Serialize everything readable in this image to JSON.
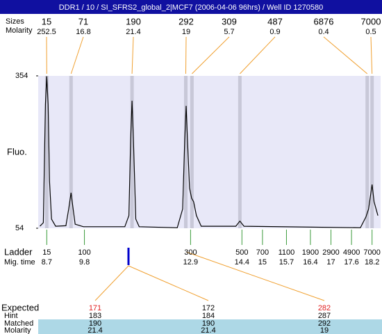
{
  "chart_data": {
    "type": "line",
    "title": "DDR1 / 10 / SI_SFRS2_global_2|MCF7 (2006-04-06 96hrs) / Well ID 1270580",
    "y_label": "Fluo.",
    "ylim": [
      54,
      354
    ],
    "yticks": [
      54,
      354
    ],
    "xlim": [
      8.45,
      18.45
    ],
    "color": "#000000",
    "x": [
      8.5,
      8.6,
      8.66,
      8.7,
      8.74,
      8.78,
      8.84,
      8.96,
      9.26,
      9.34,
      9.41,
      9.47,
      9.53,
      9.77,
      10.98,
      11.1,
      11.15,
      11.19,
      11.23,
      11.3,
      11.4,
      12.51,
      12.67,
      12.73,
      12.77,
      12.81,
      12.87,
      12.93,
      12.99,
      13.07,
      13.21,
      14.22,
      14.34,
      14.46,
      17.86,
      18.02,
      18.1,
      18.2,
      18.26,
      18.37
    ],
    "values": [
      58,
      65,
      298,
      353,
      298,
      147,
      72,
      58,
      59,
      92,
      124,
      92,
      62,
      57,
      57,
      79,
      229,
      305,
      229,
      72,
      57,
      55,
      92,
      229,
      295,
      229,
      133,
      113,
      106,
      79,
      58,
      58,
      68,
      58,
      55,
      76,
      92,
      140,
      106,
      79
    ],
    "peaks": {
      "label": "Sizes",
      "molarity_label": "Molarity",
      "sizes": [
        15,
        71,
        190,
        292,
        309,
        487,
        6876,
        7000
      ],
      "molarity": [
        252.5,
        16.8,
        21.4,
        19,
        5.7,
        0.9,
        0.4,
        0.5
      ],
      "x": [
        8.7,
        9.41,
        11.19,
        12.76,
        12.94,
        14.34,
        18.06,
        18.2
      ]
    },
    "ladder": {
      "label": "Ladder",
      "time_label": "Mig. time",
      "sizes": [
        15,
        100,
        300,
        500,
        700,
        1100,
        1900,
        2900,
        4900,
        7000
      ],
      "x": [
        8.7,
        9.8,
        12.9,
        14.4,
        15,
        15.7,
        16.4,
        17,
        17.6,
        18.2
      ]
    },
    "expected": {
      "row_labels": [
        "Expected",
        "Hint",
        "Matched",
        "Molarity"
      ],
      "columns": [
        [
          171,
          183,
          190,
          21.4
        ],
        [
          172,
          184,
          190,
          21.4
        ],
        [
          282,
          287,
          292,
          19
        ]
      ]
    }
  }
}
